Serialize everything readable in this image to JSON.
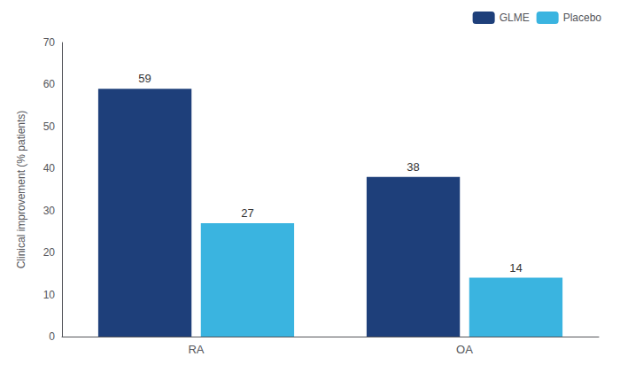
{
  "chart_data": {
    "type": "bar",
    "categories": [
      "RA",
      "OA"
    ],
    "series": [
      {
        "name": "GLME",
        "color": "#1e3f7a",
        "values": [
          59,
          38
        ]
      },
      {
        "name": "Placebo",
        "color": "#3ab4e0",
        "values": [
          27,
          14
        ]
      }
    ],
    "ylabel": "Clinical improvement (% patients)",
    "ylim": [
      0,
      70
    ],
    "yticks": [
      0,
      10,
      20,
      30,
      40,
      50,
      60,
      70
    ],
    "legend": "upper right",
    "data_labels": true,
    "grid": false
  }
}
